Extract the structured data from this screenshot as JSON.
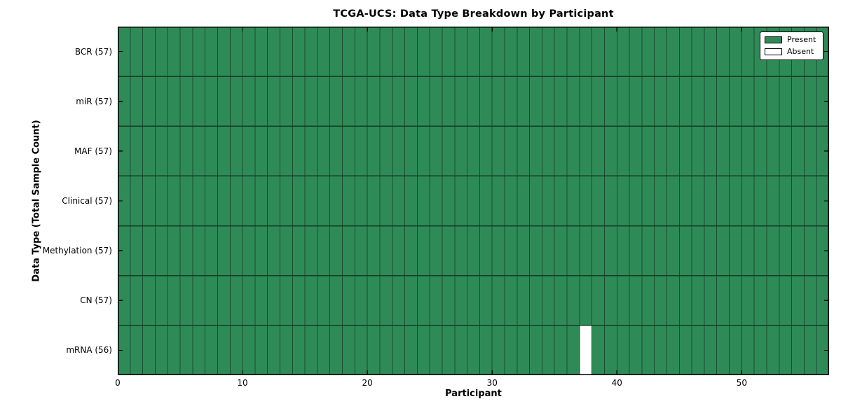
{
  "chart_data": {
    "type": "heatmap",
    "title": "TCGA-UCS: Data Type Breakdown by Participant",
    "xlabel": "Participant",
    "ylabel": "Data Type (Total Sample Count)",
    "n_participants": 57,
    "x_axis": {
      "ticks": [
        0,
        10,
        20,
        30,
        40,
        50
      ],
      "range": [
        0,
        57
      ]
    },
    "y_categories": [
      "BCR (57)",
      "miR (57)",
      "MAF (57)",
      "Clinical (57)",
      "Methylation (57)",
      "CN (57)",
      "mRNA (56)"
    ],
    "y_sample_counts": [
      57,
      57,
      57,
      57,
      57,
      57,
      56
    ],
    "absent_cells": [
      {
        "row": "mRNA (56)",
        "row_index": 6,
        "participant": 37
      }
    ],
    "legend": {
      "position": "upper right",
      "entries": [
        {
          "label": "Present",
          "color": "#2e8b57"
        },
        {
          "label": "Absent",
          "color": "#ffffff"
        }
      ]
    },
    "colors": {
      "present": "#2e8b57",
      "absent": "#ffffff",
      "cell_edge": "#1a4d30",
      "row_edge": "#143c25",
      "axis": "#000000"
    },
    "grid": true
  }
}
